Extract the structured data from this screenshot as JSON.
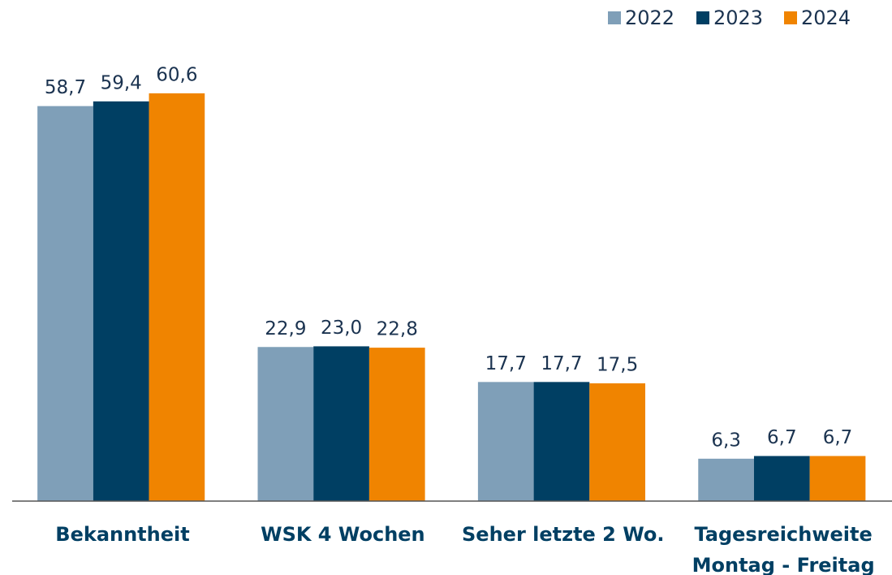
{
  "chart_data": {
    "type": "bar",
    "categories": [
      "Bekanntheit",
      "WSK 4 Wochen",
      "Seher letzte 2 Wo.",
      "Tagesreichweite\nMontag - Freitag"
    ],
    "series": [
      {
        "name": "2022",
        "color": "#7f9fb8",
        "values": [
          58.7,
          22.9,
          17.7,
          6.3
        ],
        "value_labels": [
          "58,7",
          "22,9",
          "17,7",
          "6,3"
        ]
      },
      {
        "name": "2023",
        "color": "#003f63",
        "values": [
          59.4,
          23.0,
          17.7,
          6.7
        ],
        "value_labels": [
          "59,4",
          "23,0",
          "17,7",
          "6,7"
        ]
      },
      {
        "name": "2024",
        "color": "#f08400",
        "values": [
          60.6,
          22.8,
          17.5,
          6.7
        ],
        "value_labels": [
          "60,6",
          "22,8",
          "17,5",
          "6,7"
        ]
      }
    ],
    "ylim": [
      0,
      70
    ],
    "legend": "top-right"
  }
}
